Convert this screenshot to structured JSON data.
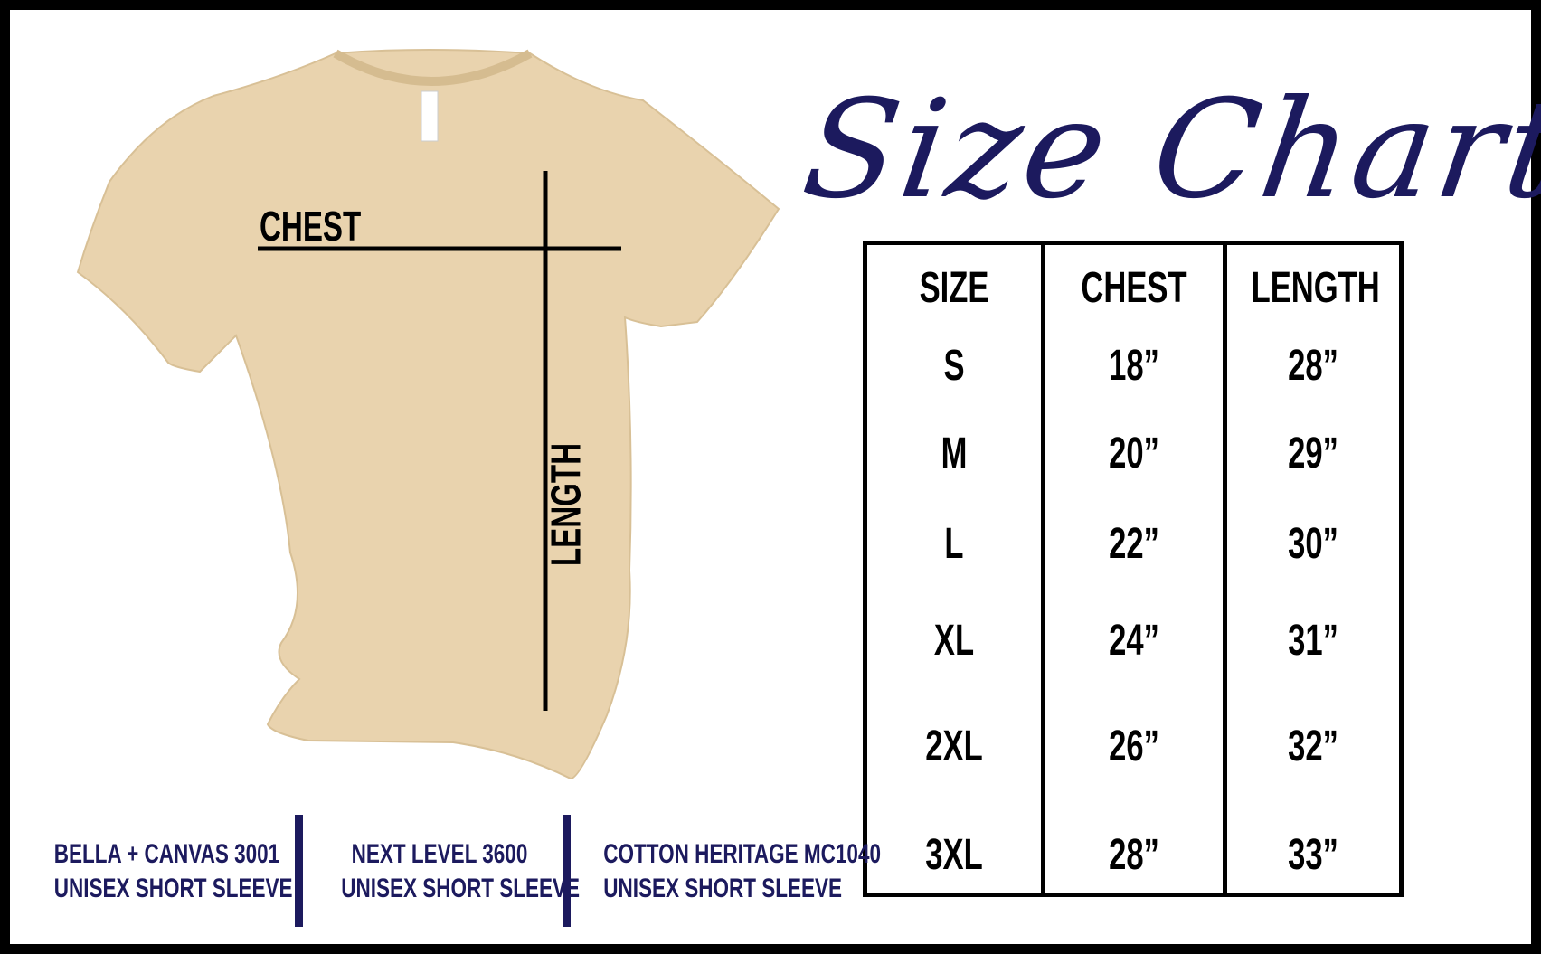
{
  "title": "Size Chart",
  "diagram": {
    "chest_label": "CHEST",
    "length_label": "LENGTH",
    "shirt_color": "#e9d3ae"
  },
  "table": {
    "headers": [
      "SIZE",
      "CHEST",
      "LENGTH"
    ],
    "rows": [
      [
        "S",
        "18”",
        "28”"
      ],
      [
        "M",
        "20”",
        "29”"
      ],
      [
        "L",
        "22”",
        "30”"
      ],
      [
        "XL",
        "24”",
        "31”"
      ],
      [
        "2XL",
        "26”",
        "32”"
      ],
      [
        "3XL",
        "28”",
        "33”"
      ]
    ]
  },
  "brands": [
    {
      "line1": "BELLA + CANVAS 3001",
      "line2": "UNISEX SHORT SLEEVE"
    },
    {
      "line1": "NEXT LEVEL 3600",
      "line2": "UNISEX SHORT SLEEVE"
    },
    {
      "line1": "COTTON HERITAGE MC1040",
      "line2": "UNISEX SHORT SLEEVE"
    }
  ],
  "colors": {
    "accent": "#1c1a5e",
    "border": "#000000"
  }
}
